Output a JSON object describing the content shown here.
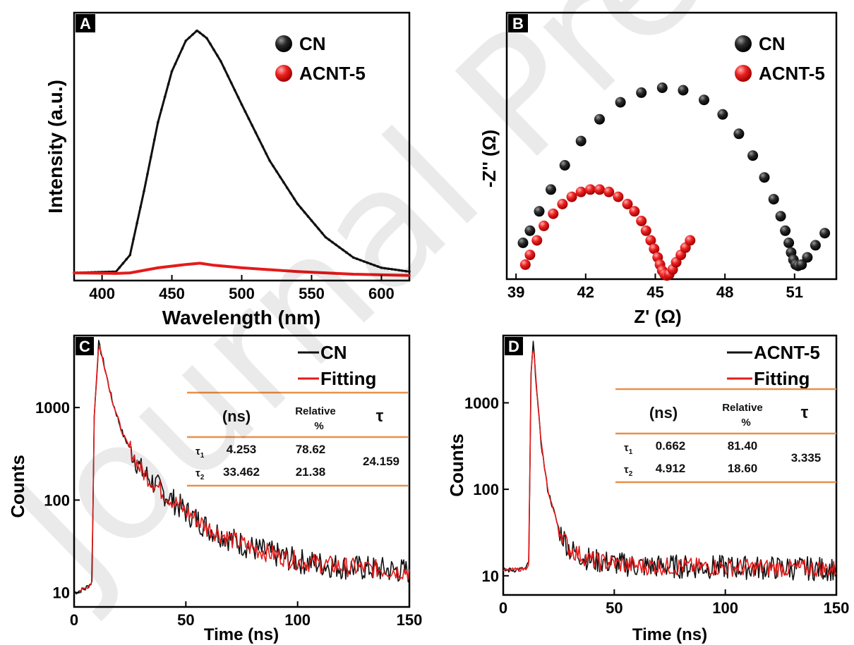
{
  "watermark": "Journal Pre-proof",
  "colors": {
    "cn": "#111111",
    "acnt": "#e51b1b",
    "table_rule": "#e8904a"
  },
  "chart_data": [
    {
      "panel": "A",
      "type": "line",
      "xlabel": "Wavelength (nm)",
      "ylabel": "Intensity (a.u.)",
      "xlim": [
        380,
        620
      ],
      "ylim": [
        0,
        1.05
      ],
      "xticks": [
        400,
        450,
        500,
        550,
        600
      ],
      "legend_position": "top-right",
      "series": [
        {
          "name": "CN",
          "x": [
            380,
            410,
            420,
            430,
            440,
            450,
            460,
            468,
            475,
            485,
            500,
            520,
            540,
            560,
            580,
            600,
            620
          ],
          "y": [
            0.03,
            0.035,
            0.1,
            0.35,
            0.62,
            0.82,
            0.94,
            0.98,
            0.95,
            0.86,
            0.69,
            0.47,
            0.3,
            0.17,
            0.09,
            0.05,
            0.035
          ]
        },
        {
          "name": "ACNT-5",
          "x": [
            380,
            410,
            420,
            440,
            460,
            470,
            480,
            500,
            540,
            580,
            620
          ],
          "y": [
            0.03,
            0.028,
            0.03,
            0.05,
            0.063,
            0.068,
            0.06,
            0.05,
            0.035,
            0.025,
            0.02
          ]
        }
      ]
    },
    {
      "panel": "B",
      "type": "scatter",
      "xlabel": "Z' (Ω)",
      "ylabel": "-Z'' (Ω)",
      "xlim": [
        38.6,
        52.8
      ],
      "ylim": [
        0,
        11
      ],
      "xticks": [
        39,
        42,
        45,
        48,
        51
      ],
      "legend_position": "top-right",
      "series": [
        {
          "name": "CN",
          "x": [
            39.3,
            39.6,
            40.0,
            40.5,
            41.1,
            41.8,
            42.6,
            43.5,
            44.4,
            45.3,
            46.2,
            47.1,
            47.9,
            48.6,
            49.2,
            49.7,
            50.1,
            50.4,
            50.6,
            50.75,
            50.85,
            50.95,
            51.05,
            51.15,
            51.3,
            51.55,
            51.9,
            52.3
          ],
          "y": [
            1.5,
            2.0,
            2.8,
            3.7,
            4.7,
            5.7,
            6.6,
            7.3,
            7.7,
            7.9,
            7.8,
            7.4,
            6.8,
            6.0,
            5.1,
            4.2,
            3.3,
            2.6,
            2.0,
            1.5,
            1.1,
            0.8,
            0.6,
            0.55,
            0.6,
            0.9,
            1.4,
            1.9
          ]
        },
        {
          "name": "ACNT-5",
          "x": [
            39.4,
            39.6,
            39.9,
            40.2,
            40.6,
            41.0,
            41.4,
            41.8,
            42.2,
            42.6,
            43.0,
            43.4,
            43.8,
            44.1,
            44.4,
            44.6,
            44.8,
            44.95,
            45.1,
            45.2,
            45.3,
            45.4,
            45.5,
            45.6,
            45.75,
            45.9,
            46.1,
            46.3,
            46.5
          ],
          "y": [
            0.6,
            1.0,
            1.6,
            2.2,
            2.7,
            3.1,
            3.4,
            3.6,
            3.7,
            3.7,
            3.6,
            3.4,
            3.1,
            2.8,
            2.4,
            2.0,
            1.6,
            1.25,
            0.9,
            0.6,
            0.35,
            0.2,
            0.15,
            0.2,
            0.4,
            0.7,
            1.0,
            1.3,
            1.6
          ]
        }
      ]
    },
    {
      "panel": "C",
      "type": "line",
      "xlabel": "Time (ns)",
      "ylabel": "Counts",
      "xlim": [
        0,
        150
      ],
      "ylim": [
        7,
        6000
      ],
      "yscale": "log",
      "xticks": [
        0,
        50,
        100,
        150
      ],
      "yticks": [
        10,
        100,
        1000
      ],
      "legend_position": "top-right",
      "series": [
        {
          "name": "CN",
          "x": [
            0,
            5,
            8,
            9,
            11,
            13,
            17,
            22,
            30,
            40,
            50,
            60,
            70,
            80,
            100,
            120,
            150
          ],
          "y": [
            10,
            11,
            13,
            800,
            5000,
            3200,
            1200,
            500,
            210,
            120,
            75,
            50,
            38,
            30,
            22,
            19,
            17
          ]
        },
        {
          "name": "Fitting",
          "x": [
            0,
            5,
            8,
            9,
            11,
            13,
            17,
            22,
            30,
            40,
            50,
            60,
            70,
            80,
            100,
            120,
            150
          ],
          "y": [
            10,
            11,
            13,
            800,
            5000,
            3200,
            1200,
            500,
            210,
            120,
            75,
            50,
            38,
            30,
            22,
            19,
            17
          ]
        }
      ],
      "table": {
        "headers": [
          "(ns)",
          "Relative %",
          "τ"
        ],
        "rows": [
          {
            "label": "τ1",
            "ns": "4.253",
            "relative": "78.62"
          },
          {
            "label": "τ2",
            "ns": "33.462",
            "relative": "21.38"
          }
        ],
        "tau": "24.159"
      }
    },
    {
      "panel": "D",
      "type": "line",
      "xlabel": "Time (ns)",
      "ylabel": "Counts",
      "xlim": [
        0,
        150
      ],
      "ylim": [
        6,
        6000
      ],
      "yscale": "log",
      "xticks": [
        0,
        50,
        100,
        150
      ],
      "yticks": [
        10,
        100,
        1000
      ],
      "legend_position": "top-right",
      "series": [
        {
          "name": "ACNT-5",
          "x": [
            0,
            10,
            11.5,
            12.5,
            13.5,
            15,
            17,
            20,
            25,
            30,
            40,
            60,
            150
          ],
          "y": [
            11.5,
            12,
            14,
            2000,
            5000,
            1500,
            350,
            100,
            35,
            20,
            15,
            13,
            12
          ]
        },
        {
          "name": "Fitting",
          "x": [
            0,
            10,
            11.5,
            12.5,
            13.5,
            15,
            17,
            20,
            25,
            30,
            40,
            60,
            150
          ],
          "y": [
            11.5,
            12,
            14,
            2000,
            5000,
            1500,
            350,
            100,
            35,
            20,
            15,
            13,
            12
          ]
        }
      ],
      "table": {
        "headers": [
          "(ns)",
          "Relative %",
          "τ"
        ],
        "rows": [
          {
            "label": "τ1",
            "ns": "0.662",
            "relative": "81.40"
          },
          {
            "label": "τ2",
            "ns": "4.912",
            "relative": "18.60"
          }
        ],
        "tau": "3.335"
      }
    }
  ]
}
